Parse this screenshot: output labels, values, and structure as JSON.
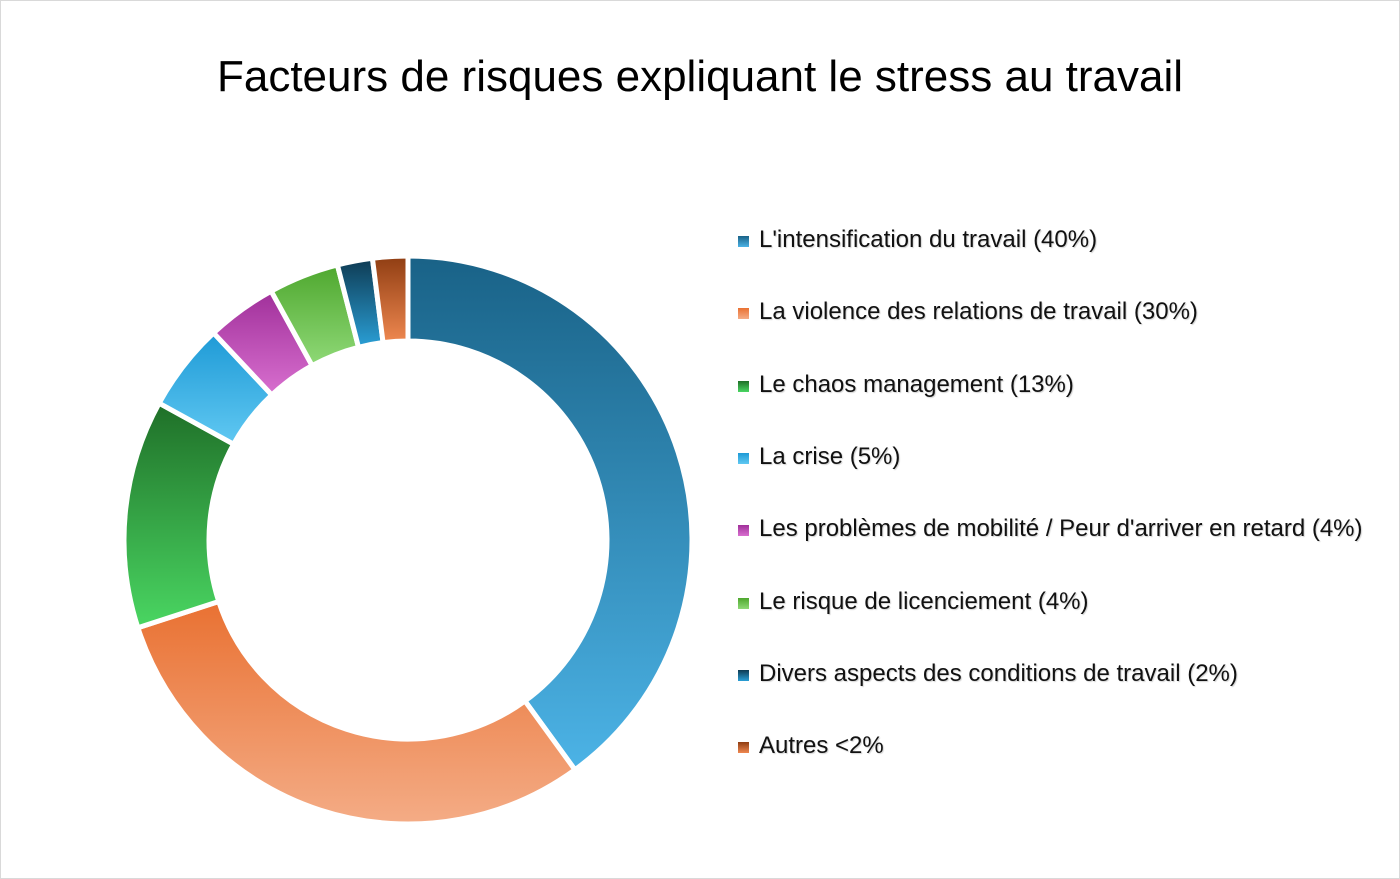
{
  "chart_data": {
    "type": "pie",
    "variant": "donut",
    "title": "Facteurs de risques expliquant le stress au travail",
    "legend_position": "right",
    "start": "top",
    "direction": "clockwise",
    "slices": [
      {
        "label": "L'intensification du travail (40%)",
        "value": 40,
        "color_top": "#196287",
        "color_bottom": "#4cb3e6"
      },
      {
        "label": "La violence des relations de travail (30%)",
        "value": 30,
        "color_top": "#e97132",
        "color_bottom": "#f4ac86"
      },
      {
        "label": "Le chaos management (13%)",
        "value": 13,
        "color_top": "#1f6f28",
        "color_bottom": "#4ad662"
      },
      {
        "label": "La crise (5%)",
        "value": 5,
        "color_top": "#1e9ad6",
        "color_bottom": "#60c8f2"
      },
      {
        "label": "Les problèmes de mobilité / Peur d'arriver en retard (4%)",
        "value": 4,
        "color_top": "#a0309a",
        "color_bottom": "#d86fcf"
      },
      {
        "label": "Le risque de licenciement (4%)",
        "value": 4,
        "color_top": "#4ea72e",
        "color_bottom": "#8fd977"
      },
      {
        "label": "Divers aspects des conditions de travail (2%)",
        "value": 2,
        "color_top": "#0e3a52",
        "color_bottom": "#2a9fd6"
      },
      {
        "label": "Autres <2%",
        "value": 2,
        "color_top": "#8f3d12",
        "color_bottom": "#ef8850"
      }
    ]
  }
}
